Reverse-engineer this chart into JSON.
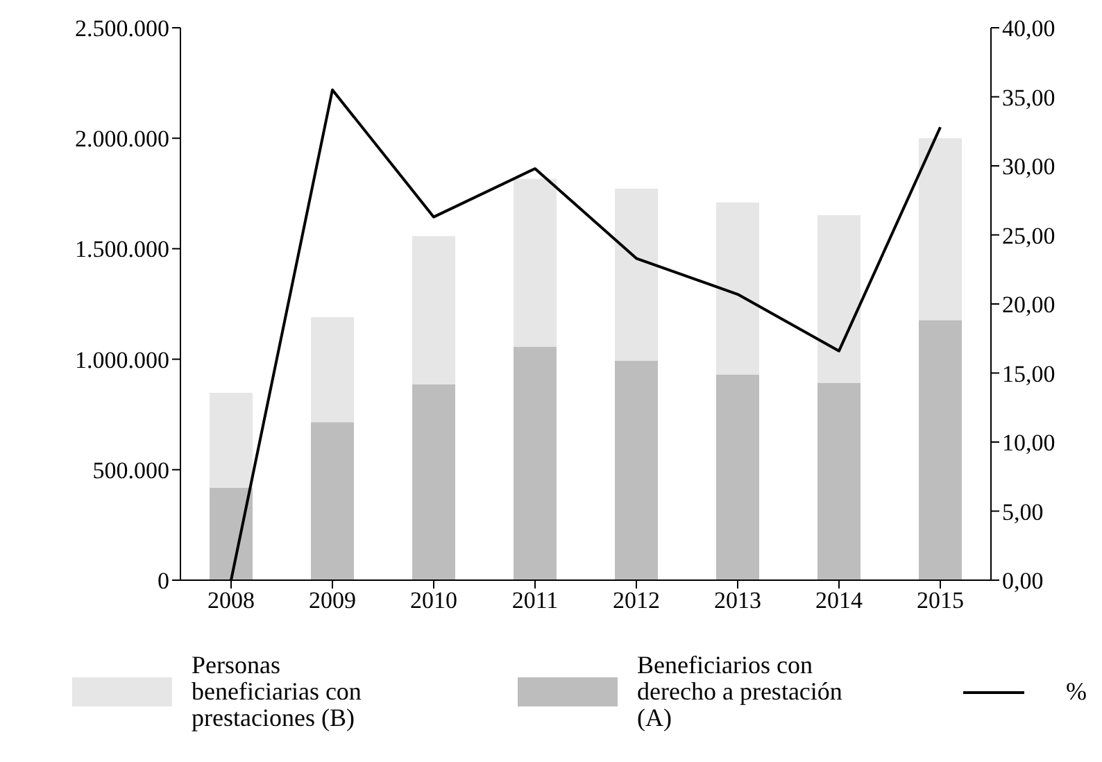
{
  "chart_data": {
    "type": "bar",
    "stacked": true,
    "categories": [
      "2008",
      "2009",
      "2010",
      "2011",
      "2012",
      "2013",
      "2014",
      "2015"
    ],
    "series": [
      {
        "name": "Beneficiarios con derecho a prestación (A)",
        "color": "#bdbdbd",
        "values": [
          418000,
          715000,
          886000,
          1057000,
          994000,
          930000,
          892000,
          1177000
        ]
      },
      {
        "name": "Personas beneficiarias con prestaciones (B)",
        "color": "#e6e6e6",
        "values": [
          430000,
          475000,
          671000,
          759000,
          778000,
          779000,
          760000,
          823000
        ]
      },
      {
        "name": "%",
        "type": "line",
        "axis": "y2",
        "color": "#000000",
        "values": [
          0,
          35.5,
          26.3,
          29.8,
          23.3,
          20.7,
          16.6,
          32.8
        ]
      }
    ],
    "ylim": [
      0,
      2500000
    ],
    "yticks": [
      {
        "value": 0,
        "label": "0"
      },
      {
        "value": 500000,
        "label": "500.000"
      },
      {
        "value": 1000000,
        "label": "1.000.000"
      },
      {
        "value": 1500000,
        "label": "1.500.000"
      },
      {
        "value": 2000000,
        "label": "2.000.000"
      },
      {
        "value": 2500000,
        "label": "2.500.000"
      }
    ],
    "y2lim": [
      0,
      40
    ],
    "y2ticks": [
      {
        "value": 0,
        "label": "0,00"
      },
      {
        "value": 5,
        "label": "5,00"
      },
      {
        "value": 10,
        "label": "10,00"
      },
      {
        "value": 15,
        "label": "15,00"
      },
      {
        "value": 20,
        "label": "20,00"
      },
      {
        "value": 25,
        "label": "25,00"
      },
      {
        "value": 30,
        "label": "30,00"
      },
      {
        "value": 35,
        "label": "35,00"
      },
      {
        "value": 40,
        "label": "40,00"
      }
    ],
    "marker": "none",
    "legend": "bottom",
    "grid": false
  }
}
